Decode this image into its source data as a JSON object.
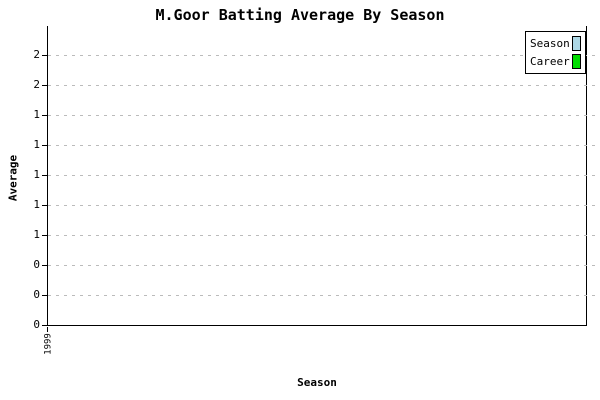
{
  "chart_data": {
    "type": "bar",
    "title": "M.Goor Batting Average By Season",
    "xlabel": "Season",
    "ylabel": "Average",
    "categories": [
      "1999"
    ],
    "series": [
      {
        "name": "Season",
        "color": "#ADD8E6",
        "values": [
          0
        ]
      },
      {
        "name": "Career",
        "color": "#00DD00",
        "values": [
          0
        ]
      }
    ],
    "y_axis": {
      "min": 0,
      "max": 2,
      "tick_step": 0.2,
      "tick_labels_top_to_bottom": [
        "2",
        "2",
        "1",
        "1",
        "1",
        "1",
        "1",
        "0",
        "0",
        "0"
      ]
    },
    "grid": {
      "orientation": "horizontal",
      "style": "dashed",
      "color": "#BBBBBB"
    },
    "legend": {
      "position": "top-right"
    },
    "colors": {
      "background": "#FFFFFF",
      "axis": "#000000",
      "text": "#000000"
    }
  }
}
